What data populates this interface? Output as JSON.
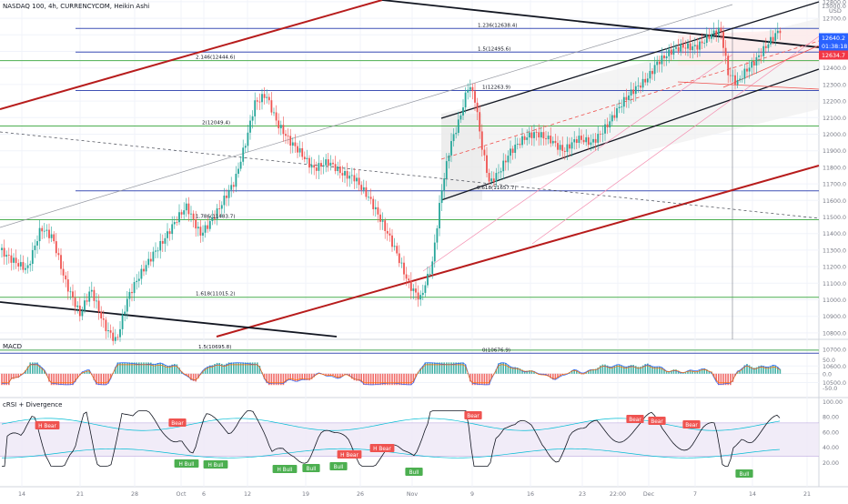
{
  "title": "NASDAQ 100, 4h, CURRENCYCOM, Heikin Ashi",
  "currency": "USD",
  "colors": {
    "up": "#26a69a",
    "down": "#ef5350",
    "fib_blue": "#3f51b5",
    "fib_green": "#4caf50",
    "trend_red": "#b71c1c",
    "trend_black": "#131722",
    "price_tag": "#2962ff",
    "price_tag_red": "#f23645",
    "rsi_band": "#7e57c2",
    "grid": "#f0f3fa"
  },
  "price_axis": {
    "labels": [
      "12800.0",
      "12700.0",
      "12600.0",
      "12500.0",
      "12400.0",
      "12300.0",
      "12200.0",
      "12100.0",
      "12000.0",
      "11900.0",
      "11800.0",
      "11700.0",
      "11600.0",
      "11500.0",
      "11400.0",
      "11300.0",
      "11200.0",
      "11100.0",
      "11000.0",
      "10900.0",
      "10800.0",
      "10700.0",
      "10600.0",
      "10500.0"
    ],
    "top_label": "13000.0",
    "tags": [
      {
        "name": "current-price-tag",
        "text": "12640.2",
        "color": "#2962ff"
      },
      {
        "name": "countdown-tag",
        "text": "01:38:18",
        "color": "#2962ff"
      },
      {
        "name": "last-close-tag",
        "text": "12634.7",
        "color": "#f23645"
      }
    ]
  },
  "macd_axis": {
    "labels": [
      "50.0",
      "0.0",
      "-50.0"
    ]
  },
  "rsi_axis": {
    "labels": [
      "100.00",
      "80.00",
      "60.00",
      "40.00",
      "20.00"
    ]
  },
  "panes": {
    "macd_title": "MACD",
    "rsi_title": "cRSI + Divergence"
  },
  "time_axis": {
    "labels": [
      "14",
      "21",
      "28",
      "Oct",
      "6",
      "12",
      "19",
      "26",
      "Nov",
      "9",
      "16",
      "23",
      "22:00",
      "Dec",
      "7",
      "14",
      "21"
    ]
  },
  "fib_labels": [
    {
      "text": "1.236(12638.4)"
    },
    {
      "text": "1.5(12495.6)"
    },
    {
      "text": "2.146(12444.6)"
    },
    {
      "text": "1(12263.9)"
    },
    {
      "text": "2(12049.4)"
    },
    {
      "text": "0.618(11657.7)"
    },
    {
      "text": "1.786(11483.7)"
    },
    {
      "text": "1.618(11015.2)"
    },
    {
      "text": "1.5(10695.8)"
    },
    {
      "text": "0(10676.9)"
    }
  ],
  "rsi_signals": [
    {
      "text": "H Bear",
      "type": "bear"
    },
    {
      "text": "Bear",
      "type": "bear"
    },
    {
      "text": "H Bull",
      "type": "bull"
    },
    {
      "text": "H Bull",
      "type": "bull"
    },
    {
      "text": "H Bull",
      "type": "bull"
    },
    {
      "text": "Bull",
      "type": "bull"
    },
    {
      "text": "Bull",
      "type": "bull"
    },
    {
      "text": "H Bear",
      "type": "bear"
    },
    {
      "text": "H Bear",
      "type": "bear"
    },
    {
      "text": "Bull",
      "type": "bull"
    },
    {
      "text": "Bear",
      "type": "bear"
    },
    {
      "text": "Bear",
      "type": "bear"
    },
    {
      "text": "Bear",
      "type": "bear"
    },
    {
      "text": "Bear",
      "type": "bear"
    },
    {
      "text": "Bull",
      "type": "bull"
    }
  ],
  "chart_data": {
    "type": "line",
    "title": "NASDAQ 100, 4h, CURRENCYCOM, Heikin Ashi",
    "ylim": [
      10500,
      13000
    ],
    "x": [
      "14",
      "21",
      "28",
      "Oct",
      "6",
      "12",
      "19",
      "26",
      "Nov",
      "9",
      "16",
      "23",
      "Dec",
      "7",
      "14"
    ],
    "series": [
      {
        "values": [
          11300,
          11050,
          10900,
          11100,
          11350,
          12250,
          11800,
          11500,
          10950,
          12300,
          11700,
          11980,
          12100,
          12400,
          12640
        ]
      }
    ],
    "fib_levels": [
      12638.4,
      12495.6,
      12444.6,
      12263.9,
      12049.4,
      11657.7,
      11483.7,
      11015.2,
      10695.8,
      10676.9
    ],
    "macd_range": [
      -50,
      50
    ],
    "rsi_range": [
      0,
      100
    ]
  }
}
